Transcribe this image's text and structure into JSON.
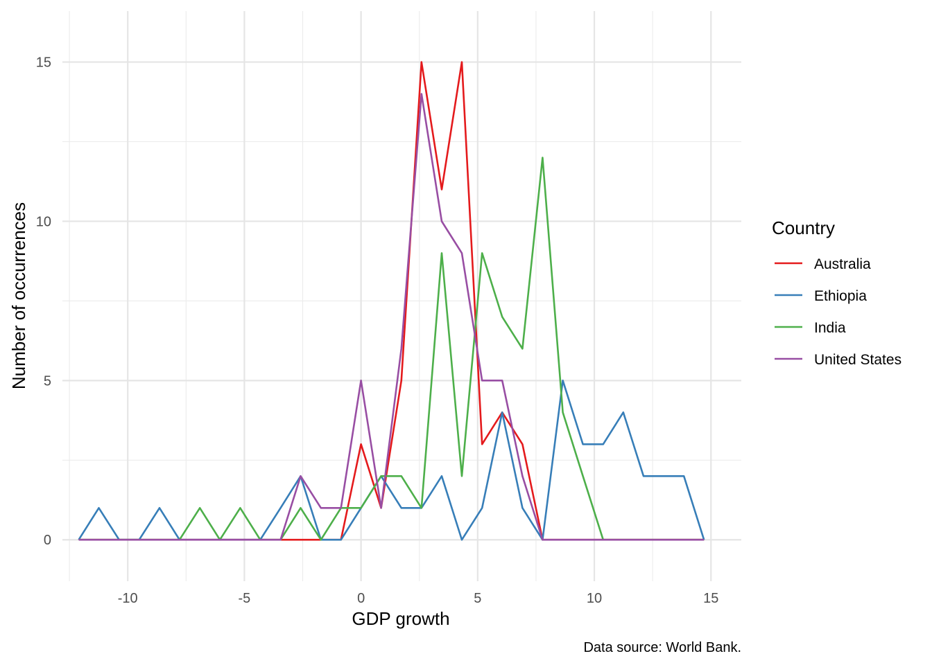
{
  "chart_data": {
    "type": "line",
    "xlabel": "GDP growth",
    "ylabel": "Number of occurrences",
    "caption": "Data source: World Bank.",
    "legend_title": "Country",
    "legend_position": "right",
    "grid": true,
    "xlim": [
      -12.8,
      16.3
    ],
    "ylim": [
      -1.3,
      16.6
    ],
    "x_ticks": [
      -10,
      -5,
      0,
      5,
      10,
      15
    ],
    "x_tick_labels": [
      "-10",
      "-5",
      "0",
      "5",
      "10",
      "15"
    ],
    "x_minor_ticks": [
      -12.5,
      -7.5,
      -2.5,
      2.5,
      7.5,
      12.5
    ],
    "y_ticks": [
      0,
      5,
      10,
      15
    ],
    "y_tick_labels": [
      "0",
      "5",
      "10",
      "15"
    ],
    "y_minor_ticks": [
      2.5,
      7.5,
      12.5
    ],
    "x": [
      -12.1,
      -11.24,
      -10.37,
      -9.51,
      -8.64,
      -7.78,
      -6.91,
      -6.05,
      -5.18,
      -4.32,
      -3.45,
      -2.59,
      -1.72,
      -0.86,
      0.0,
      0.86,
      1.73,
      2.59,
      3.46,
      4.32,
      5.19,
      6.05,
      6.92,
      7.78,
      8.65,
      9.51,
      10.38,
      11.24,
      12.11,
      12.97,
      13.84,
      14.7
    ],
    "series": [
      {
        "name": "Australia",
        "color": "#e41a1c",
        "values": [
          0,
          0,
          0,
          0,
          0,
          0,
          0,
          0,
          0,
          0,
          0,
          0,
          0,
          0,
          3,
          1,
          5,
          15,
          11,
          15,
          3,
          4,
          3,
          0,
          0,
          0,
          0,
          0,
          0,
          0,
          0,
          0
        ]
      },
      {
        "name": "Ethiopia",
        "color": "#377eb8",
        "values": [
          0,
          1,
          0,
          0,
          1,
          0,
          0,
          0,
          0,
          0,
          1,
          2,
          0,
          0,
          1,
          2,
          1,
          1,
          2,
          0,
          1,
          4,
          1,
          0,
          5,
          3,
          3,
          4,
          2,
          2,
          2,
          0
        ]
      },
      {
        "name": "India",
        "color": "#4daf4a",
        "values": [
          0,
          0,
          0,
          0,
          0,
          0,
          1,
          0,
          1,
          0,
          0,
          1,
          0,
          1,
          1,
          2,
          2,
          1,
          9,
          2,
          9,
          7,
          6,
          12,
          4,
          2,
          0,
          0,
          0,
          0,
          0,
          0
        ]
      },
      {
        "name": "United States",
        "color": "#984ea3",
        "values": [
          0,
          0,
          0,
          0,
          0,
          0,
          0,
          0,
          0,
          0,
          0,
          2,
          1,
          1,
          5,
          1,
          6,
          14,
          10,
          9,
          5,
          5,
          2,
          0,
          0,
          0,
          0,
          0,
          0,
          0,
          0,
          0
        ]
      }
    ]
  }
}
